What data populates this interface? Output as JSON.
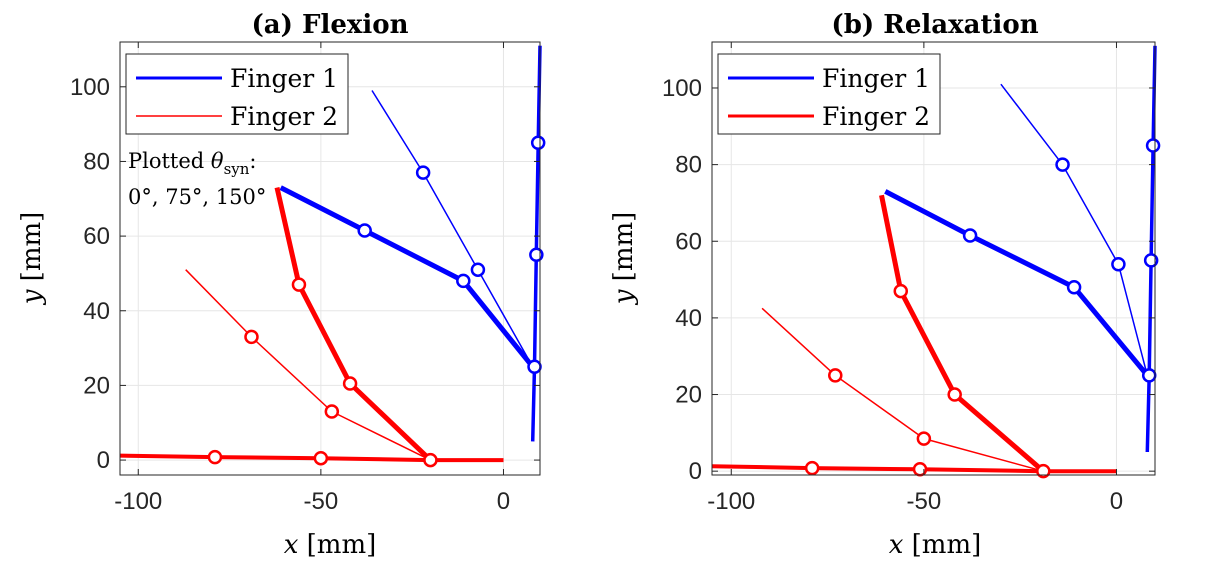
{
  "chart_data": [
    {
      "type": "line",
      "title": "(a) Flexion",
      "xlabel": "x [mm]",
      "ylabel": "y [mm]",
      "xlim": [
        -105,
        10
      ],
      "ylim": [
        -4,
        112
      ],
      "xticks": [
        -100,
        -50,
        0
      ],
      "yticks": [
        0,
        20,
        40,
        60,
        80,
        100
      ],
      "xtick_labels": [
        "-100",
        "-50",
        "0"
      ],
      "ytick_labels": [
        "0",
        "20",
        "40",
        "60",
        "80",
        "100"
      ],
      "grid": true,
      "legend_position": "top-left",
      "annotation": {
        "line1": "Plotted θ",
        "sub": "syn",
        "line1_end": ":",
        "line2": "0°, 75°, 150°"
      },
      "series": [
        {
          "name": "Finger 1",
          "color": "#0000ff",
          "configs": [
            {
              "width": 3.5,
              "points": [
                [
                  8,
                  5
                ],
                [
                  8.5,
                  25
                ],
                [
                  9,
                  55
                ],
                [
                  9.5,
                  85
                ],
                [
                  10,
                  111
                ]
              ]
            },
            {
              "width": 5,
              "points": [
                [
                  8,
                  25
                ],
                [
                  -11,
                  48
                ],
                [
                  -38,
                  61.5
                ],
                [
                  -61,
                  73
                ]
              ]
            },
            {
              "width": 1.5,
              "points": [
                [
                  8,
                  25
                ],
                [
                  -7,
                  51
                ],
                [
                  -22,
                  77
                ],
                [
                  -36,
                  99
                ]
              ]
            }
          ]
        },
        {
          "name": "Finger 2",
          "color": "#ff0000",
          "configs": [
            {
              "width": 4,
              "points": [
                [
                  0,
                  0
                ],
                [
                  -20,
                  0
                ],
                [
                  -50,
                  0.5
                ],
                [
                  -79,
                  0.8
                ],
                [
                  -105,
                  1.2
                ]
              ]
            },
            {
              "width": 5,
              "points": [
                [
                  -20,
                  0
                ],
                [
                  -42,
                  20.5
                ],
                [
                  -56,
                  47
                ],
                [
                  -62,
                  73
                ]
              ]
            },
            {
              "width": 1.5,
              "points": [
                [
                  -20,
                  0
                ],
                [
                  -47,
                  13
                ],
                [
                  -69,
                  33
                ],
                [
                  -87,
                  51
                ]
              ]
            }
          ]
        }
      ]
    },
    {
      "type": "line",
      "title": "(b) Relaxation",
      "xlabel": "x [mm]",
      "ylabel": "y [mm]",
      "xlim": [
        -105,
        10
      ],
      "ylim": [
        -1,
        112
      ],
      "xticks": [
        -100,
        -50,
        0
      ],
      "yticks": [
        0,
        20,
        40,
        60,
        80,
        100
      ],
      "xtick_labels": [
        "-100",
        "-50",
        "0"
      ],
      "ytick_labels": [
        "0",
        "20",
        "40",
        "60",
        "80",
        "100"
      ],
      "grid": true,
      "legend_position": "top-left",
      "series": [
        {
          "name": "Finger 1",
          "color": "#0000ff",
          "configs": [
            {
              "width": 3.5,
              "points": [
                [
                  8,
                  5
                ],
                [
                  8.5,
                  25
                ],
                [
                  9,
                  55
                ],
                [
                  9.5,
                  85
                ],
                [
                  10,
                  111
                ]
              ]
            },
            {
              "width": 5,
              "points": [
                [
                  8,
                  25
                ],
                [
                  -11,
                  48
                ],
                [
                  -38,
                  61.5
                ],
                [
                  -60,
                  73
                ]
              ]
            },
            {
              "width": 1.5,
              "points": [
                [
                  8,
                  25
                ],
                [
                  0.5,
                  54
                ],
                [
                  -14,
                  80
                ],
                [
                  -30,
                  101
                ]
              ]
            }
          ]
        },
        {
          "name": "Finger 2",
          "color": "#ff0000",
          "configs": [
            {
              "width": 4,
              "points": [
                [
                  0,
                  0
                ],
                [
                  -19,
                  0
                ],
                [
                  -51,
                  0.5
                ],
                [
                  -79,
                  0.8
                ],
                [
                  -105,
                  1.3
                ]
              ]
            },
            {
              "width": 5,
              "points": [
                [
                  -19,
                  0
                ],
                [
                  -42,
                  20
                ],
                [
                  -56,
                  47
                ],
                [
                  -61,
                  72
                ]
              ]
            },
            {
              "width": 1.5,
              "points": [
                [
                  -19,
                  0
                ],
                [
                  -50,
                  8.5
                ],
                [
                  -73,
                  25
                ],
                [
                  -92,
                  42.5
                ]
              ]
            }
          ]
        }
      ]
    }
  ]
}
